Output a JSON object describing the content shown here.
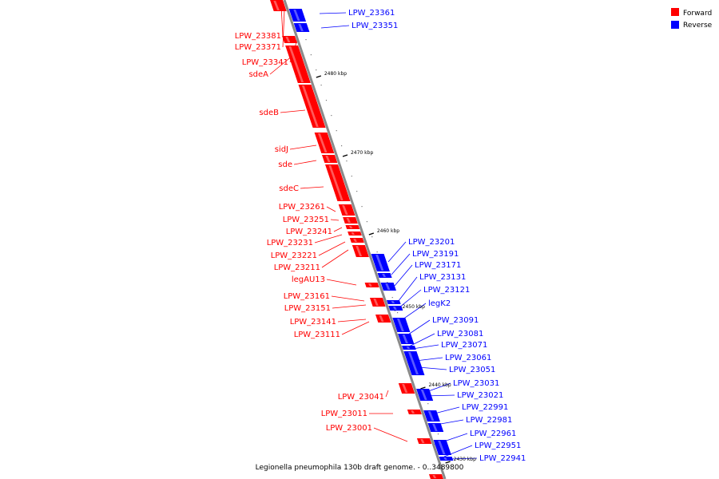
{
  "caption": "Legionella pneumophila 130b draft genome. - 0..3489800",
  "legend": {
    "placement": "top-right",
    "items": [
      {
        "label": "Forward",
        "color": "#ff0000"
      },
      {
        "label": "Reverse",
        "color": "#0000ff"
      }
    ]
  },
  "colors": {
    "forward": "#ff0000",
    "reverse": "#0000ff",
    "backbone": "#888888"
  },
  "ticks": [
    "2480 kbp",
    "2470 kbp",
    "2460 kbp",
    "2450 kbp",
    "2440 kbp",
    "2430 kbp"
  ],
  "forward_genes": [
    "LPW_23381",
    "LPW_23371",
    "LPW_23341",
    "sdeA",
    "sdeB",
    "sidJ",
    "sde",
    "sdeC",
    "LPW_23261",
    "LPW_23251",
    "LPW_23241",
    "LPW_23231",
    "LPW_23221",
    "LPW_23211",
    "legAU13",
    "LPW_23161",
    "LPW_23151",
    "LPW_23141",
    "LPW_23111",
    "LPW_23041",
    "LPW_23011",
    "LPW_23001"
  ],
  "reverse_genes": [
    "LPW_23361",
    "LPW_23351",
    "LPW_23201",
    "LPW_23191",
    "LPW_23171",
    "LPW_23131",
    "LPW_23121",
    "legK2",
    "LPW_23091",
    "LPW_23081",
    "LPW_23071",
    "LPW_23061",
    "LPW_23051",
    "LPW_23031",
    "LPW_23021",
    "LPW_22991",
    "LPW_22981",
    "LPW_22961",
    "LPW_22951",
    "LPW_22941"
  ]
}
